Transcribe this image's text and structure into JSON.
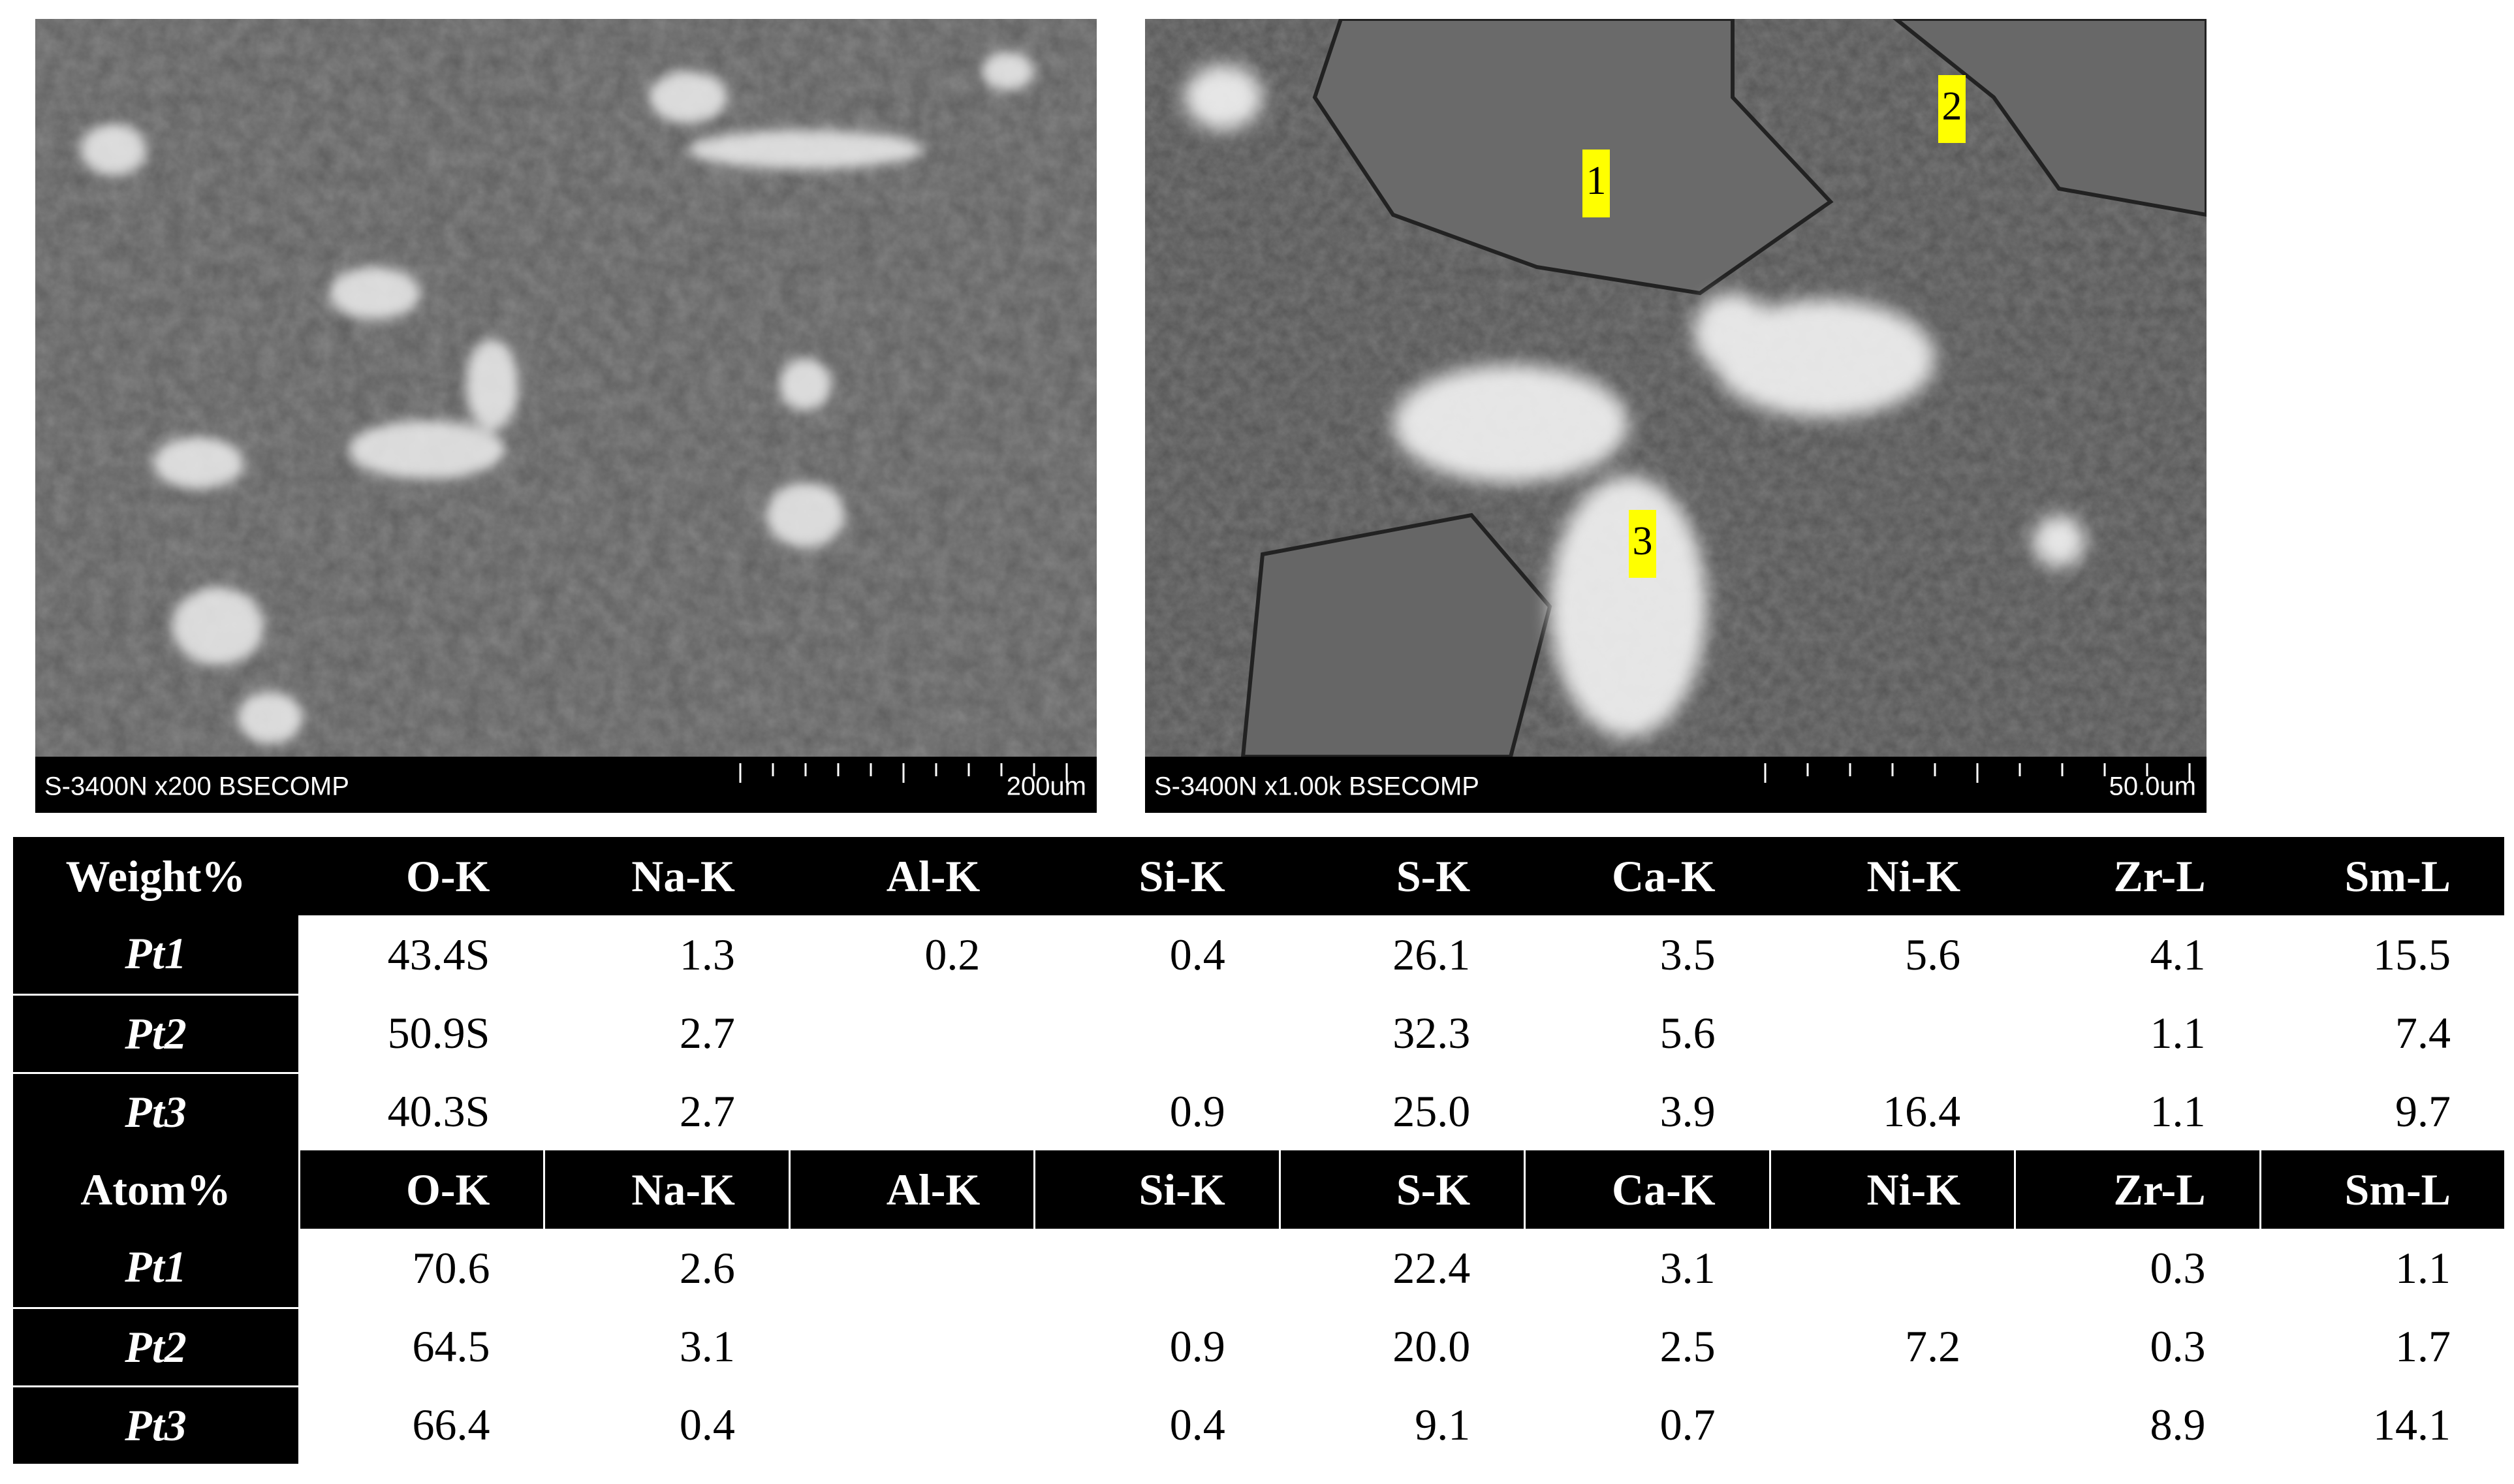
{
  "images": [
    {
      "caption": "S-3400N x200 BSECOMP",
      "scale_label": "200um"
    },
    {
      "caption": "S-3400N x1.00k BSECOMP",
      "scale_label": "50.0um",
      "markers": [
        "1",
        "2",
        "3"
      ]
    }
  ],
  "tables": [
    {
      "header": [
        "Weight%",
        "O-K",
        "Na-K",
        "Al-K",
        "Si-K",
        "S-K",
        "Ca-K",
        "Ni-K",
        "Zr-L",
        "Sm-L"
      ],
      "rows": [
        [
          "Pt1",
          "43.4S",
          "1.3",
          "0.2",
          "0.4",
          "26.1",
          "3.5",
          "5.6",
          "4.1",
          "15.5"
        ],
        [
          "Pt2",
          "50.9S",
          "2.7",
          null,
          null,
          "32.3",
          "5.6",
          null,
          "1.1",
          "7.4"
        ],
        [
          "Pt3",
          "40.3S",
          "2.7",
          null,
          "0.9",
          "25.0",
          "3.9",
          "16.4",
          "1.1",
          "9.7"
        ]
      ]
    },
    {
      "header": [
        "Atom%",
        "O-K",
        "Na-K",
        "Al-K",
        "Si-K",
        "S-K",
        "Ca-K",
        "Ni-K",
        "Zr-L",
        "Sm-L"
      ],
      "rows": [
        [
          "Pt1",
          "70.6",
          "2.6",
          null,
          null,
          "22.4",
          "3.1",
          null,
          "0.3",
          "1.1"
        ],
        [
          "Pt2",
          "64.5",
          "3.1",
          null,
          "0.9",
          "20.0",
          "2.5",
          "7.2",
          "0.3",
          "1.7"
        ],
        [
          "Pt3",
          "66.4",
          "0.4",
          null,
          "0.4",
          "9.1",
          "0.7",
          null,
          "8.9",
          "14.1"
        ]
      ]
    }
  ]
}
